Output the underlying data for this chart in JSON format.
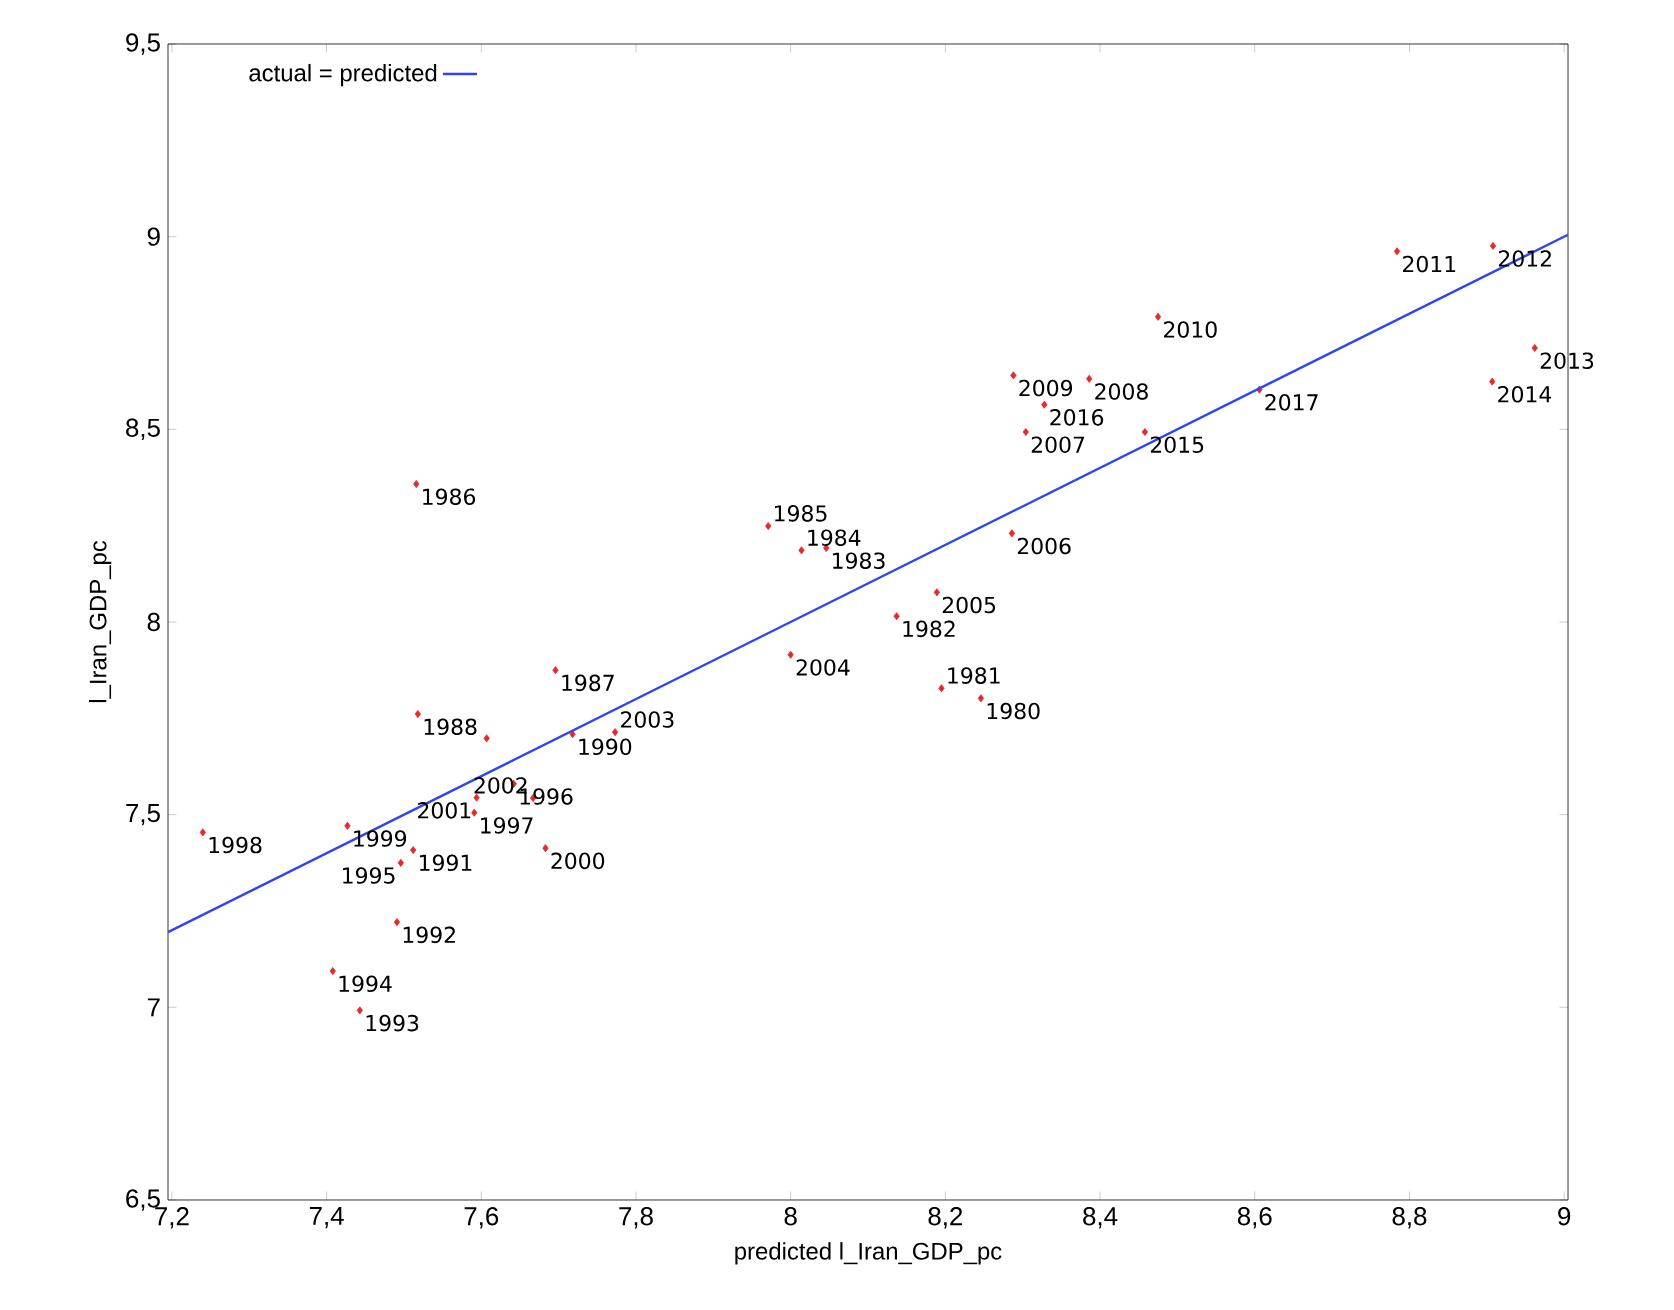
{
  "chart_data": {
    "type": "scatter",
    "xlabel": "predicted l_Iran_GDP_pc",
    "ylabel": "l_Iran_GDP_pc",
    "xlim": [
      7.195,
      9.005
    ],
    "ylim": [
      6.5,
      9.5
    ],
    "xticks": [
      {
        "value": 7.2,
        "label": "7,2"
      },
      {
        "value": 7.4,
        "label": "7,4"
      },
      {
        "value": 7.6,
        "label": "7,6"
      },
      {
        "value": 7.8,
        "label": "7,8"
      },
      8,
      {
        "value": 8.2,
        "label": "8,2"
      },
      {
        "value": 8.4,
        "label": "8,4"
      },
      {
        "value": 8.6,
        "label": "8,6"
      },
      {
        "value": 8.8,
        "label": "8,8"
      },
      9
    ],
    "yticks": [
      {
        "value": 6.5,
        "label": "6,5"
      },
      7,
      {
        "value": 7.5,
        "label": "7,5"
      },
      8,
      {
        "value": 8.5,
        "label": "8,5"
      },
      9,
      {
        "value": 9.5,
        "label": "9,5"
      }
    ],
    "legend": "top left",
    "grid": false,
    "series": [
      {
        "color": "#e8282a",
        "marker": "diamond",
        "x": [
          8.246,
          8.195,
          8.137,
          8.046,
          8.014,
          7.971,
          7.516,
          7.696,
          7.518,
          7.607,
          7.718,
          7.512,
          7.491,
          7.443,
          7.408,
          7.496,
          7.642,
          7.591,
          7.24,
          7.427,
          7.683,
          7.594,
          7.667,
          7.773,
          8.0,
          8.189,
          8.286,
          8.304,
          8.386,
          8.288,
          8.475,
          8.784,
          8.908,
          8.962,
          8.907,
          8.458,
          8.328,
          8.606
        ],
        "values": [
          7.802,
          7.828,
          8.015,
          8.192,
          8.186,
          8.249,
          8.358,
          7.875,
          7.761,
          7.698,
          7.709,
          7.408,
          7.221,
          6.992,
          7.094,
          7.375,
          7.58,
          7.505,
          7.454,
          7.471,
          7.413,
          7.544,
          7.543,
          7.714,
          7.915,
          8.077,
          8.23,
          8.493,
          8.631,
          8.64,
          8.792,
          8.962,
          8.976,
          8.711,
          8.624,
          8.493,
          8.564,
          8.603
        ]
      },
      {
        "type": "line",
        "name": "actual = predicted",
        "color": "#2f45f0",
        "line_style": "solid",
        "marker": "none",
        "x": [
          7.195,
          9.005
        ],
        "values": [
          7.195,
          9.005
        ]
      }
    ],
    "annotations": [
      {
        "text": "1980",
        "x": 8.246,
        "y": 7.802
      },
      {
        "text": "1981",
        "x": 8.195,
        "y": 7.828
      },
      {
        "text": "1982",
        "x": 8.137,
        "y": 8.015
      },
      {
        "text": "1983",
        "x": 8.046,
        "y": 8.192
      },
      {
        "text": "1984",
        "x": 8.014,
        "y": 8.186
      },
      {
        "text": "1985",
        "x": 7.971,
        "y": 8.249
      },
      {
        "text": "1986",
        "x": 7.516,
        "y": 8.358
      },
      {
        "text": "1987",
        "x": 7.696,
        "y": 7.875
      },
      {
        "text": "1988",
        "x": 7.518,
        "y": 7.761
      },
      {
        "text": "1990",
        "x": 7.718,
        "y": 7.709
      },
      {
        "text": "1991",
        "x": 7.512,
        "y": 7.408
      },
      {
        "text": "1992",
        "x": 7.491,
        "y": 7.221
      },
      {
        "text": "1993",
        "x": 7.443,
        "y": 6.992
      },
      {
        "text": "1994",
        "x": 7.408,
        "y": 7.094
      },
      {
        "text": "1995",
        "x": 7.496,
        "y": 7.375
      },
      {
        "text": "1996",
        "x": 7.642,
        "y": 7.58
      },
      {
        "text": "1997",
        "x": 7.591,
        "y": 7.505
      },
      {
        "text": "1998",
        "x": 7.24,
        "y": 7.454
      },
      {
        "text": "1999",
        "x": 7.427,
        "y": 7.471
      },
      {
        "text": "2000",
        "x": 7.683,
        "y": 7.413
      },
      {
        "text": "2001",
        "x": 7.594,
        "y": 7.544
      },
      {
        "text": "2002",
        "x": 7.667,
        "y": 7.543
      },
      {
        "text": "2003",
        "x": 7.773,
        "y": 7.714
      },
      {
        "text": "2004",
        "x": 8.0,
        "y": 7.915
      },
      {
        "text": "2005",
        "x": 8.189,
        "y": 8.077
      },
      {
        "text": "2006",
        "x": 8.286,
        "y": 8.23
      },
      {
        "text": "2007",
        "x": 8.304,
        "y": 8.493
      },
      {
        "text": "2008",
        "x": 8.386,
        "y": 8.631
      },
      {
        "text": "2009",
        "x": 8.288,
        "y": 8.64
      },
      {
        "text": "2010",
        "x": 8.475,
        "y": 8.792
      },
      {
        "text": "2011",
        "x": 8.784,
        "y": 8.962
      },
      {
        "text": "2012",
        "x": 8.908,
        "y": 8.976
      },
      {
        "text": "2013",
        "x": 8.962,
        "y": 8.711
      },
      {
        "text": "2014",
        "x": 8.907,
        "y": 8.624
      },
      {
        "text": "2015",
        "x": 8.458,
        "y": 8.493
      },
      {
        "text": "2016",
        "x": 8.328,
        "y": 8.564
      },
      {
        "text": "2017",
        "x": 8.606,
        "y": 8.603
      }
    ]
  }
}
